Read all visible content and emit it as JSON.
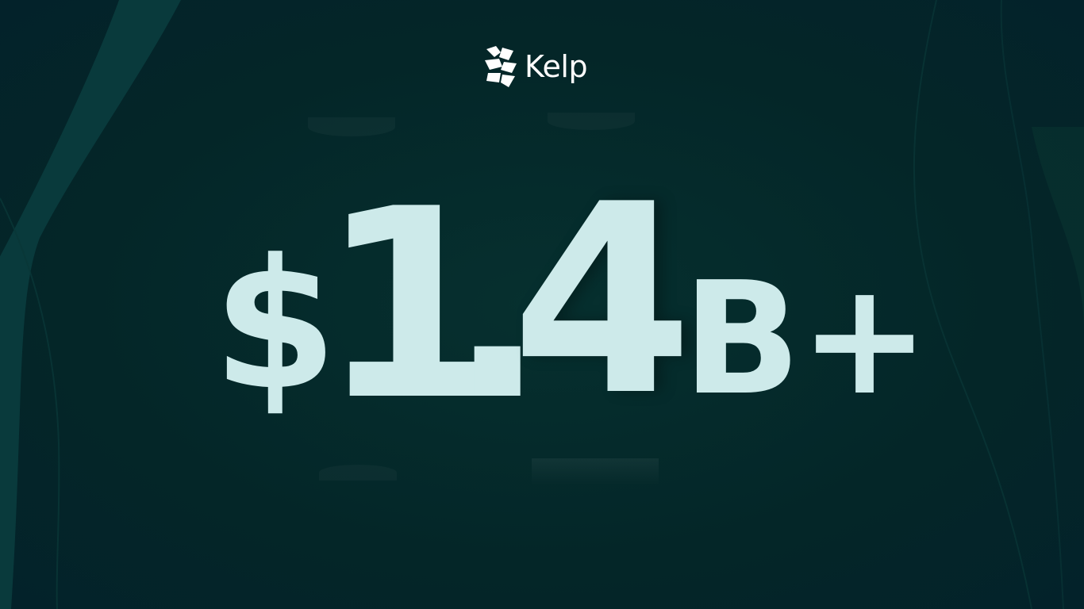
{
  "brand": {
    "name": "Kelp",
    "logo_icon": "kelp-logo-icon"
  },
  "headline": {
    "currency": "$",
    "whole": "1",
    "decimal_point": ".",
    "fraction": "4",
    "suffix": "B+"
  },
  "colors": {
    "background": "#05292b",
    "figure_text": "#cdeaea",
    "brand_text": "#ffffff",
    "wave_accent": "#0b3e3f"
  }
}
